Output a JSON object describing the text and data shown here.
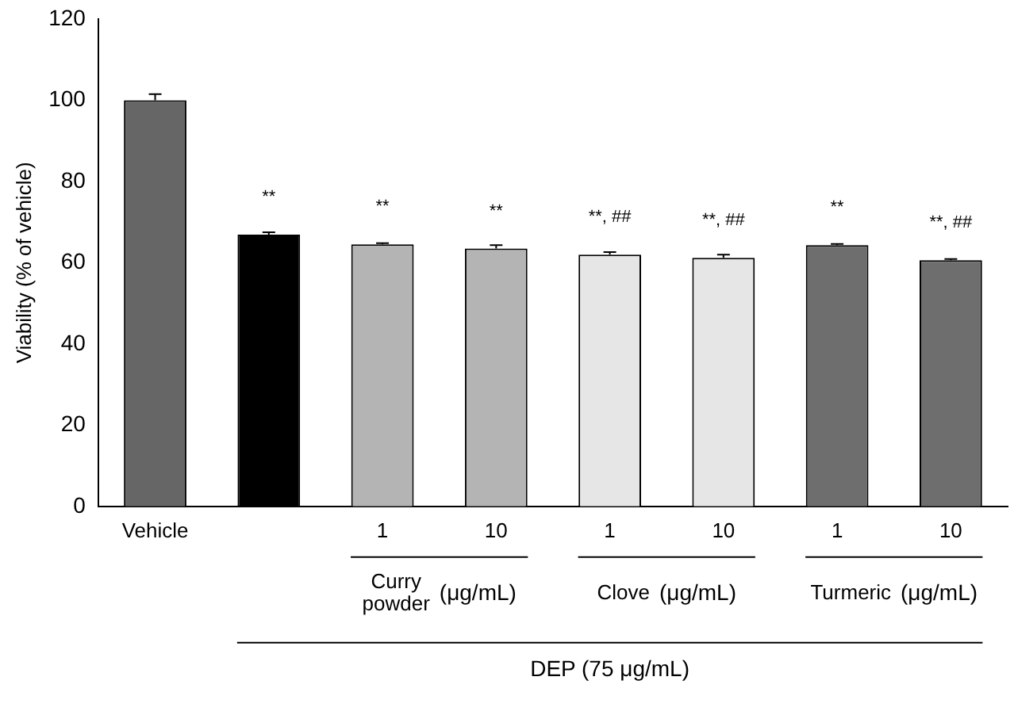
{
  "chart_data": {
    "type": "bar",
    "ylabel": "Viability (% of vehicle)",
    "categories": [
      "Vehicle",
      null,
      "1",
      "10",
      "1",
      "10",
      "1",
      "10"
    ],
    "values": [
      100,
      66.9,
      64.5,
      63.5,
      62.0,
      61.2,
      64.3,
      60.6
    ],
    "colors": [
      "#666666",
      "#000000",
      "#b4b4b4",
      "#b4b4b4",
      "#e6e6e6",
      "#e6e6e6",
      "#6e6e6e",
      "#6e6e6e"
    ],
    "errors": [
      1.5,
      0.6,
      0.3,
      0.8,
      0.6,
      0.8,
      0.3,
      0.3
    ],
    "value_labels": [
      null,
      "**",
      "**",
      "**",
      "**, ##",
      "**, ##",
      "**",
      "**, ##"
    ],
    "annotations": [
      "Curry powder (μg/mL)",
      "Clove (μg/mL)",
      "Turmeric (μg/mL)",
      "DEP (75 μg/mL)"
    ],
    "ylim": [
      0,
      120
    ],
    "yticks": [
      0,
      20,
      40,
      60,
      80,
      100,
      120
    ],
    "grid": false,
    "legend": false
  }
}
